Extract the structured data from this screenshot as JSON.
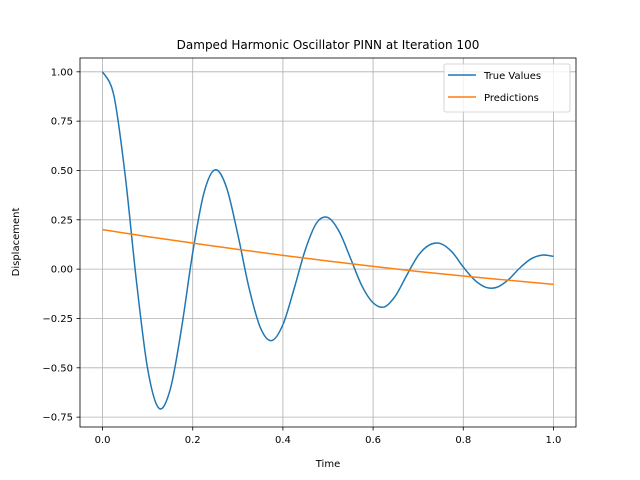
{
  "chart_data": {
    "type": "line",
    "title": "Damped Harmonic Oscillator PINN at Iteration 100",
    "xlabel": "Time",
    "ylabel": "Displacement",
    "xlim": [
      -0.05,
      1.05
    ],
    "ylim": [
      -0.8,
      1.07
    ],
    "xticks": [
      0.0,
      0.2,
      0.4,
      0.6,
      0.8,
      1.0
    ],
    "xtick_labels": [
      "0.0",
      "0.2",
      "0.4",
      "0.6",
      "0.8",
      "1.0"
    ],
    "yticks": [
      -0.75,
      -0.5,
      -0.25,
      0.0,
      0.25,
      0.5,
      0.75,
      1.0
    ],
    "ytick_labels": [
      "−0.75",
      "−0.50",
      "−0.25",
      "0.00",
      "0.25",
      "0.50",
      "0.75",
      "1.00"
    ],
    "grid": true,
    "legend_position": "top-right",
    "series": [
      {
        "name": "True Values",
        "color": "#1f77b4",
        "x": [
          0.0,
          0.025,
          0.05,
          0.075,
          0.1,
          0.125,
          0.15,
          0.175,
          0.2,
          0.225,
          0.25,
          0.275,
          0.3,
          0.325,
          0.35,
          0.375,
          0.4,
          0.425,
          0.45,
          0.475,
          0.5,
          0.525,
          0.55,
          0.575,
          0.6,
          0.625,
          0.65,
          0.675,
          0.7,
          0.725,
          0.75,
          0.775,
          0.8,
          0.825,
          0.85,
          0.875,
          0.9,
          0.925,
          0.95,
          0.975,
          1.0
        ],
        "y": [
          1.0,
          0.8812,
          0.4792,
          -0.0572,
          -0.5048,
          -0.7047,
          -0.6102,
          -0.3019,
          0.0844,
          0.3876,
          0.5036,
          0.4133,
          0.1756,
          -0.0967,
          -0.2967,
          -0.3623,
          -0.2812,
          -0.0981,
          0.1003,
          0.2351,
          0.2612,
          0.1892,
          0.0545,
          -0.0839,
          -0.1703,
          -0.1916,
          -0.1339,
          -0.0295,
          0.0689,
          0.1226,
          0.1291,
          0.0872,
          0.0108,
          -0.0549,
          -0.092,
          -0.0918,
          -0.0535,
          0.0051,
          0.0518,
          0.0713,
          0.0646
        ]
      },
      {
        "name": "Predictions",
        "color": "#ff7f0e",
        "x": [
          0.0,
          0.1,
          0.2,
          0.3,
          0.4,
          0.5,
          0.6,
          0.7,
          0.8,
          0.9,
          1.0
        ],
        "y": [
          0.2,
          0.165,
          0.132,
          0.1,
          0.07,
          0.041,
          0.014,
          -0.012,
          -0.035,
          -0.056,
          -0.077
        ]
      }
    ]
  }
}
